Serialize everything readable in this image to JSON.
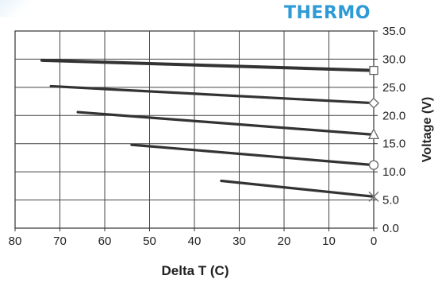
{
  "brand": {
    "text": "THERMO",
    "color": "#2e9ad6"
  },
  "chart_data": {
    "type": "line",
    "title": "",
    "xlabel": "Delta  T (C)",
    "ylabel": "Voltage (V)",
    "x_reversed": true,
    "xlim": [
      80,
      0
    ],
    "ylim": [
      0,
      35
    ],
    "x_ticks": [
      "80",
      "70",
      "60",
      "50",
      "40",
      "30",
      "20",
      "10",
      "0"
    ],
    "y_ticks": [
      "0.0",
      "5.0",
      "10.0",
      "15.0",
      "20.0",
      "25.0",
      "30.0",
      "35.0"
    ],
    "y_axis_position": "right",
    "grid": true,
    "legend": "none",
    "line_color": "#333333",
    "series": [
      {
        "marker": "square",
        "points": [
          [
            74,
            29.8
          ],
          [
            0,
            28.0
          ]
        ]
      },
      {
        "marker": "diamond",
        "points": [
          [
            72,
            25.2
          ],
          [
            0,
            22.2
          ]
        ]
      },
      {
        "marker": "triangle",
        "points": [
          [
            66,
            20.6
          ],
          [
            0,
            16.6
          ]
        ]
      },
      {
        "marker": "circle",
        "points": [
          [
            54,
            14.8
          ],
          [
            0,
            11.2
          ]
        ]
      },
      {
        "marker": "x",
        "points": [
          [
            34,
            8.4
          ],
          [
            0,
            5.6
          ]
        ]
      }
    ]
  }
}
